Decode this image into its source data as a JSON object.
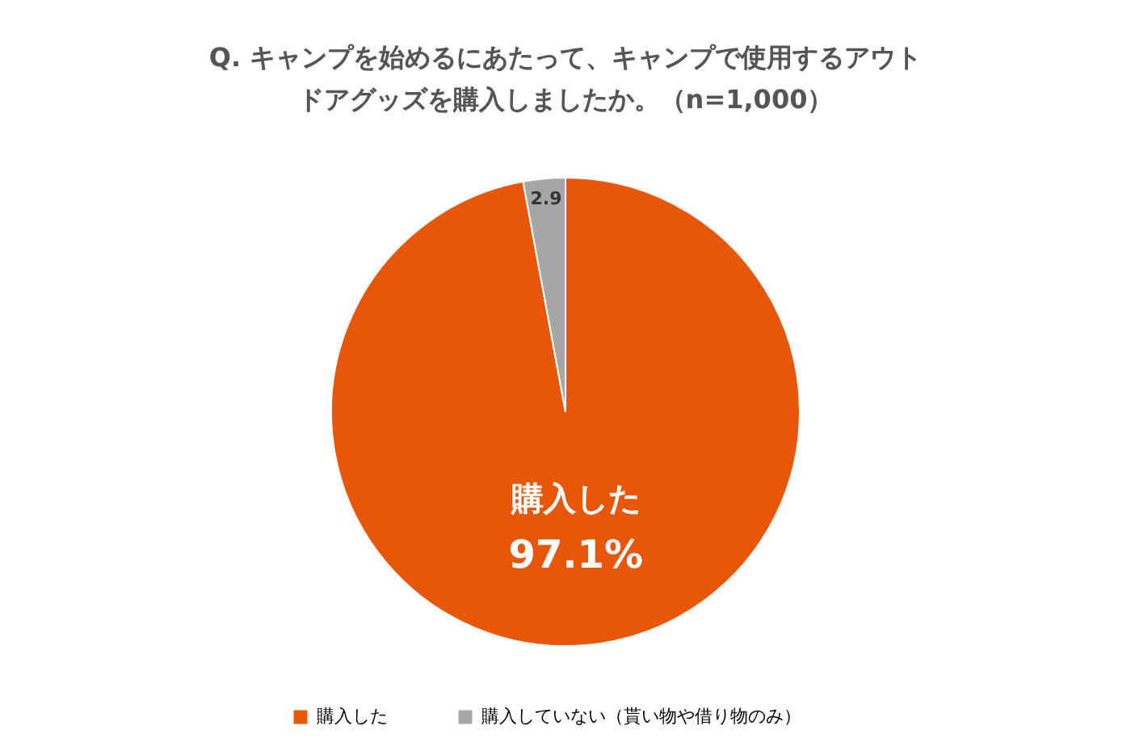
{
  "chart_data": {
    "type": "pie",
    "title": "Q. キャンプを始めるにあたって、キャンプで使用するアウトドアグッズを購入しましたか。（n=1,000）",
    "categories": [
      "購入した",
      "購入していない（貰い物や借り物のみ）"
    ],
    "values": [
      97.1,
      2.9
    ],
    "colors": [
      "#e8560a",
      "#a6a6a6"
    ],
    "value_labels": [
      "97.1%",
      "2.9"
    ],
    "legend": "bottom"
  }
}
